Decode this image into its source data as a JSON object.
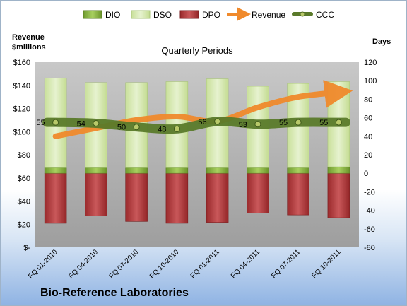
{
  "company": "Bio-Reference Laboratories",
  "chart_data": {
    "type": "bar",
    "title": "Quarterly Periods",
    "ylabel_left": "Revenue\n$millions",
    "ylabel_right": "Days",
    "categories": [
      "FQ 01-2010",
      "FQ 04-2010",
      "FQ 07-2010",
      "FQ 10-2010",
      "FQ 01-2011",
      "FQ 04-2011",
      "FQ 07-2011",
      "FQ 10-2011"
    ],
    "ylim_left": [
      0,
      160
    ],
    "ylim_right": [
      -80,
      120
    ],
    "yticks_left": [
      "$-",
      "$20",
      "$40",
      "$60",
      "$80",
      "$100",
      "$120",
      "$140",
      "$160"
    ],
    "yticks_right": [
      "-80",
      "-60",
      "-40",
      "-20",
      "0",
      "20",
      "40",
      "60",
      "80",
      "100",
      "120"
    ],
    "legend_position": "top",
    "legend": [
      "DIO",
      "DSO",
      "DPO",
      "Revenue",
      "CCC"
    ],
    "colors": {
      "DIO": "#8fbf4a",
      "DSO": "#d5e8b0",
      "DPO": "#b5373a",
      "Revenue": "#f08a2c",
      "CCC": "#5a7a2a",
      "plot_bg": "#a6a6a6"
    },
    "series": [
      {
        "name": "DIO",
        "axis": "right",
        "values": [
          6,
          6,
          6,
          6,
          6,
          6,
          6,
          7
        ]
      },
      {
        "name": "DSO",
        "axis": "right",
        "values": [
          97,
          92,
          92,
          93,
          96,
          88,
          91,
          92
        ]
      },
      {
        "name": "DPO",
        "axis": "right",
        "values": [
          -54,
          -46,
          -52,
          -54,
          -53,
          -43,
          -45,
          -48
        ]
      },
      {
        "name": "Revenue",
        "axis": "left",
        "values": [
          96,
          103,
          110,
          113,
          109,
          121,
          130,
          134
        ]
      },
      {
        "name": "CCC",
        "axis": "right",
        "values": [
          55,
          54,
          50,
          48,
          56,
          53,
          55,
          55
        ]
      }
    ],
    "ccc_labels": [
      "55",
      "54",
      "50",
      "48",
      "56",
      "53",
      "55",
      "55"
    ],
    "grid": false
  }
}
